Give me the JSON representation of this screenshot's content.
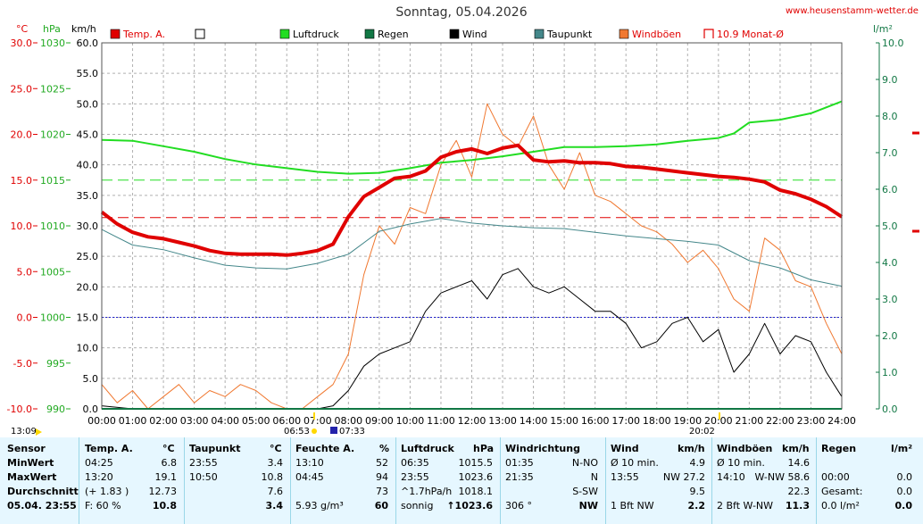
{
  "header": {
    "title": "Sonntag, 05.04.2026",
    "site": "www.heusenstamm-wetter.de"
  },
  "units": {
    "temp": "°C",
    "pressure": "hPa",
    "wind": "km/h",
    "rain": "l/m²"
  },
  "legend": [
    {
      "label": "Temp. A.",
      "color": "#e00000",
      "box": "filled"
    },
    {
      "label": "",
      "color": "#ffffff",
      "box": "outline"
    },
    {
      "label": "Luftdruck",
      "color": "#22dd22",
      "box": "filled"
    },
    {
      "label": "Regen",
      "color": "#117744",
      "box": "filled"
    },
    {
      "label": "Wind",
      "color": "#000000",
      "box": "filled"
    },
    {
      "label": "Taupunkt",
      "color": "#44878a",
      "box": "filled"
    },
    {
      "label": "Windböen",
      "color": "#f07830",
      "box": "filled"
    },
    {
      "label": "10.9 Monat-Ø",
      "color": "#e00000",
      "box": "bracket"
    }
  ],
  "axes": {
    "temp_ticks": [
      "30.0",
      "25.0",
      "20.0",
      "15.0",
      "10.0",
      "5.0",
      "0.0",
      "-5.0",
      "-10.0"
    ],
    "hpa_ticks": [
      "1030",
      "1025",
      "1020",
      "1015",
      "1010",
      "1005",
      "1000",
      "995",
      "990"
    ],
    "kmh_ticks": [
      "60.0",
      "55.0",
      "50.0",
      "45.0",
      "40.0",
      "35.0",
      "30.0",
      "25.0",
      "20.0",
      "15.0",
      "10.0",
      "5.0",
      "0.0"
    ],
    "rain_ticks": [
      "10.0",
      "9.0",
      "8.0",
      "7.0",
      "6.0",
      "5.0",
      "4.0",
      "3.0",
      "2.0",
      "1.0",
      "0.0"
    ],
    "time_ticks": [
      "00:00",
      "01:00",
      "02:00",
      "03:00",
      "04:00",
      "05:00",
      "06:00",
      "07:00",
      "08:00",
      "09:00",
      "10:00",
      "11:00",
      "12:00",
      "13:00",
      "14:00",
      "15:00",
      "16:00",
      "17:00",
      "18:00",
      "19:00",
      "20:00",
      "21:00",
      "22:00",
      "23:00",
      "24:00"
    ],
    "markers": {
      "moon_left": "13:09",
      "sunrise": "06:53",
      "civil": "07:33",
      "sunset": "20:02"
    }
  },
  "chart_data": {
    "type": "line",
    "x_unit": "hour",
    "xlim": [
      0,
      24
    ],
    "ylim_temp": [
      -10,
      30
    ],
    "ylim_pressure": [
      990,
      1030
    ],
    "ylim_wind": [
      0,
      60
    ],
    "ylim_rain": [
      0,
      10
    ],
    "month_avg_temp": 10.9,
    "series": [
      {
        "name": "Temp. A.",
        "color": "#e00000",
        "axis": "temp",
        "x": [
          0,
          0.5,
          1,
          1.5,
          2,
          2.5,
          3,
          3.5,
          4,
          4.5,
          5,
          5.5,
          6,
          6.5,
          7,
          7.5,
          8,
          8.5,
          9,
          9.5,
          10,
          10.5,
          11,
          11.5,
          12,
          12.5,
          13,
          13.5,
          14,
          14.5,
          15,
          15.5,
          16,
          16.5,
          17,
          17.5,
          18,
          18.5,
          19,
          19.5,
          20,
          20.5,
          21,
          21.5,
          22,
          22.5,
          23,
          23.5,
          24
        ],
        "values": [
          11.5,
          10.2,
          9.3,
          8.8,
          8.6,
          8.2,
          7.8,
          7.3,
          7.0,
          6.9,
          6.9,
          6.9,
          6.8,
          7.0,
          7.3,
          8.0,
          11.0,
          13.2,
          14.2,
          15.2,
          15.4,
          16.0,
          17.5,
          18.1,
          18.4,
          17.9,
          18.5,
          18.8,
          17.2,
          17.0,
          17.1,
          16.9,
          16.9,
          16.8,
          16.5,
          16.4,
          16.2,
          16.0,
          15.8,
          15.6,
          15.4,
          15.3,
          15.1,
          14.8,
          13.9,
          13.5,
          12.9,
          12.1,
          11.0
        ]
      },
      {
        "name": "Luftdruck",
        "color": "#22dd22",
        "axis": "pressure",
        "x": [
          0,
          1,
          2,
          3,
          4,
          5,
          6,
          7,
          8,
          9,
          10,
          11,
          12,
          13,
          14,
          15,
          16,
          17,
          18,
          19,
          20,
          20.5,
          21,
          22,
          23,
          24
        ],
        "values": [
          1019.4,
          1019.3,
          1018.7,
          1018.1,
          1017.3,
          1016.7,
          1016.3,
          1015.9,
          1015.7,
          1015.8,
          1016.3,
          1016.9,
          1017.2,
          1017.6,
          1018.1,
          1018.6,
          1018.6,
          1018.7,
          1018.9,
          1019.3,
          1019.6,
          1020.1,
          1021.3,
          1021.6,
          1022.3,
          1023.6
        ]
      },
      {
        "name": "Taupunkt",
        "color": "#44878a",
        "axis": "temp",
        "x": [
          0,
          1,
          2,
          3,
          4,
          5,
          6,
          7,
          8,
          9,
          10,
          11,
          12,
          13,
          14,
          15,
          16,
          17,
          18,
          19,
          20,
          21,
          22,
          23,
          24
        ],
        "values": [
          9.6,
          7.9,
          7.4,
          6.5,
          5.7,
          5.4,
          5.3,
          5.9,
          6.9,
          9.4,
          10.2,
          10.8,
          10.3,
          10.0,
          9.8,
          9.7,
          9.3,
          8.9,
          8.6,
          8.3,
          7.9,
          6.2,
          5.4,
          4.1,
          3.4
        ]
      },
      {
        "name": "Wind",
        "color": "#000000",
        "axis": "wind",
        "x": [
          0,
          1,
          2,
          3,
          4,
          5,
          6,
          7,
          7.5,
          8,
          8.5,
          9,
          9.5,
          10,
          10.5,
          11,
          11.5,
          12,
          12.5,
          13,
          13.5,
          14,
          14.5,
          15,
          15.5,
          16,
          16.5,
          17,
          17.5,
          18,
          18.5,
          19,
          19.5,
          20,
          20.5,
          21,
          21.5,
          22,
          22.5,
          23,
          23.5,
          24
        ],
        "values": [
          0.5,
          0,
          0,
          0,
          0,
          0,
          0,
          0,
          0.5,
          3,
          7,
          9,
          10,
          11,
          16,
          19,
          20,
          21,
          18,
          22,
          23,
          20,
          19,
          20,
          18,
          16,
          16,
          14,
          10,
          11,
          14,
          15,
          11,
          13,
          6,
          9,
          14,
          9,
          12,
          11,
          6,
          2
        ]
      },
      {
        "name": "Windböen",
        "color": "#f07830",
        "axis": "wind",
        "x": [
          0,
          0.5,
          1,
          1.5,
          2,
          2.5,
          3,
          3.5,
          4,
          4.5,
          5,
          5.5,
          6,
          6.5,
          7,
          7.5,
          8,
          8.5,
          9,
          9.5,
          10,
          10.5,
          11,
          11.5,
          12,
          12.5,
          13,
          13.5,
          14,
          14.5,
          15,
          15.5,
          16,
          16.5,
          17,
          17.5,
          18,
          18.5,
          19,
          19.5,
          20,
          20.5,
          21,
          21.5,
          22,
          22.5,
          23,
          23.5,
          24
        ],
        "values": [
          4,
          1,
          3,
          0,
          2,
          4,
          1,
          3,
          2,
          4,
          3,
          1,
          0,
          0,
          2,
          4,
          9,
          22,
          30,
          27,
          33,
          32,
          40,
          44,
          38,
          50,
          45,
          43,
          48,
          40,
          36,
          42,
          35,
          34,
          32,
          30,
          29,
          27,
          24,
          26,
          23,
          18,
          16,
          28,
          26,
          21,
          20,
          14,
          9
        ]
      }
    ]
  },
  "table": {
    "headers": [
      {
        "label": "Sensor",
        "unit": ""
      },
      {
        "label": "Temp. A.",
        "unit": "°C"
      },
      {
        "label": "Taupunkt",
        "unit": "°C"
      },
      {
        "label": "Feuchte A.",
        "unit": "%"
      },
      {
        "label": "Luftdruck",
        "unit": "hPa"
      },
      {
        "label": "Windrichtung",
        "unit": ""
      },
      {
        "label": "Wind",
        "unit": "km/h"
      },
      {
        "label": "Windböen",
        "unit": "km/h"
      },
      {
        "label": "Regen",
        "unit": "l/m²"
      }
    ],
    "rows": [
      {
        "label": "MinWert",
        "cells": [
          [
            "04:25",
            "6.8"
          ],
          [
            "23:55",
            "3.4"
          ],
          [
            "13:10",
            "52"
          ],
          [
            "06:35",
            "1015.5"
          ],
          [
            "01:35",
            "N-NO"
          ],
          [
            "Ø 10 min.",
            "4.9"
          ],
          [
            "Ø 10 min.",
            "14.6"
          ],
          [
            "",
            ""
          ]
        ]
      },
      {
        "label": "MaxWert",
        "cells": [
          [
            "13:20",
            "19.1"
          ],
          [
            "10:50",
            "10.8"
          ],
          [
            "04:45",
            "94"
          ],
          [
            "23:55",
            "1023.6"
          ],
          [
            "21:35",
            "N"
          ],
          [
            "13:55",
            "NW 27.2"
          ],
          [
            "14:10",
            "W-NW 58.6"
          ],
          [
            "00:00",
            "0.0"
          ]
        ]
      },
      {
        "label": "Durchschnitt",
        "cells": [
          [
            "(+ 1.83 )",
            "12.73"
          ],
          [
            "",
            "7.6"
          ],
          [
            "",
            "73"
          ],
          [
            "^1.7hPa/h",
            "1018.1"
          ],
          [
            "",
            "S-SW"
          ],
          [
            "",
            "9.5"
          ],
          [
            "",
            "22.3"
          ],
          [
            "Gesamt:",
            "0.0"
          ]
        ]
      },
      {
        "label": "05.04.  23:55",
        "cells": [
          [
            "F: 60 %",
            "10.8"
          ],
          [
            "",
            "3.4"
          ],
          [
            "5.93 g/m³",
            "60"
          ],
          [
            "sonnig",
            "↑1023.6"
          ],
          [
            "306 °",
            "NW"
          ],
          [
            "1 Bft NW",
            "2.2"
          ],
          [
            "2 Bft W-NW",
            "11.3"
          ],
          [
            "0.0 l/m²",
            "0.0"
          ]
        ]
      }
    ]
  }
}
